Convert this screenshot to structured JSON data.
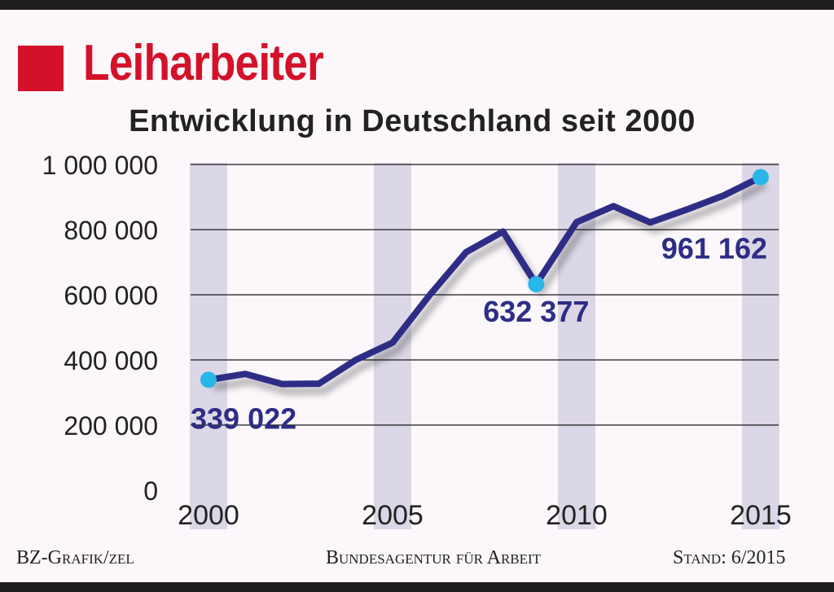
{
  "title": "Leiharbeiter",
  "subtitle": "Entwicklung in Deutschland seit 2000",
  "footer": {
    "credit": "BZ-Grafik/zel",
    "source": "Bundesagentur für Arbeit",
    "stand": "Stand: 6/2015"
  },
  "colors": {
    "accent": "#d3122a",
    "line": "#2e2d86",
    "marker": "#29b6e8",
    "band": "#dcd7e6",
    "background": "#fbf7fb"
  },
  "chart_data": {
    "type": "line",
    "title": "Leiharbeiter – Entwicklung in Deutschland seit 2000",
    "xlabel": "",
    "ylabel": "",
    "xlim": [
      2000,
      2015
    ],
    "ylim": [
      0,
      1000000
    ],
    "x_ticks": [
      "2000",
      "2005",
      "2010",
      "2015"
    ],
    "x_tick_values": [
      2000,
      2005,
      2010,
      2015
    ],
    "y_ticks": [
      "0",
      "200 000",
      "400 000",
      "600 000",
      "800 000",
      "1 000 000"
    ],
    "y_tick_values": [
      0,
      200000,
      400000,
      600000,
      800000,
      1000000
    ],
    "grid": true,
    "series": [
      {
        "name": "Leiharbeiter",
        "x": [
          2000,
          2001,
          2002,
          2003,
          2004,
          2005,
          2006,
          2007,
          2008,
          2008.9,
          2010,
          2011,
          2012,
          2013,
          2014,
          2015
        ],
        "values": [
          339022,
          357000,
          326000,
          327000,
          400000,
          453000,
          598000,
          731000,
          794000,
          632377,
          823000,
          872000,
          822000,
          862000,
          905000,
          961162
        ]
      }
    ],
    "annotations": [
      {
        "x": 2000,
        "y": 339022,
        "label": "339 022",
        "position": "below"
      },
      {
        "x": 2008.9,
        "y": 632377,
        "label": "632 377",
        "position": "below"
      },
      {
        "x": 2015,
        "y": 961162,
        "label": "961 162",
        "position": "below-left"
      }
    ]
  }
}
